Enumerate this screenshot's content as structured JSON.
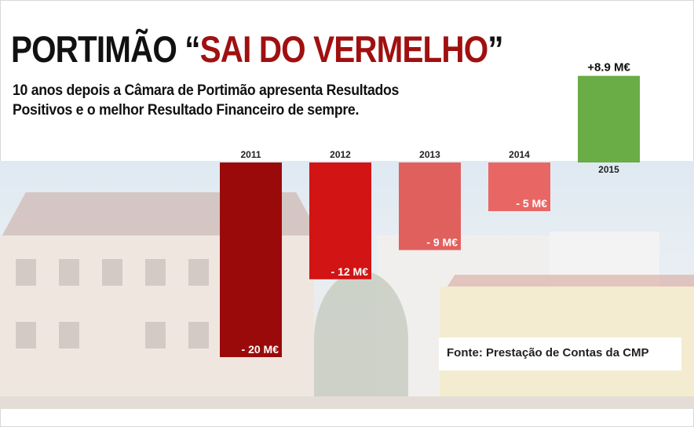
{
  "header": {
    "title_part1": "PORTIMÃO “",
    "title_accent": "SAI DO VERMELHO",
    "title_part2": "”",
    "subtitle_line1": "10 anos depois a Câmara de Portimão apresenta Resultados",
    "subtitle_line2": "Positivos e o melhor Resultado Financeiro de sempre."
  },
  "source": "Fonte: Prestação de Contas da CMP",
  "colors": {
    "title_accent": "#a01010",
    "bar_2011": "#9b0a0a",
    "bar_2012": "#d21414",
    "bar_2013": "#e0605e",
    "bar_2014": "#e86764",
    "bar_2015": "#6aac45"
  },
  "chart_data": {
    "type": "bar",
    "categories": [
      "2011",
      "2012",
      "2013",
      "2014",
      "2015"
    ],
    "values": [
      -20,
      -12,
      -9,
      -5,
      8.9
    ],
    "value_labels": [
      "- 20 M€",
      "- 12 M€",
      "- 9 M€",
      "- 5 M€",
      "+8.9 M€"
    ],
    "unit": "M€",
    "ylim": [
      -20,
      8.9
    ],
    "grid": false,
    "legend": "none"
  }
}
